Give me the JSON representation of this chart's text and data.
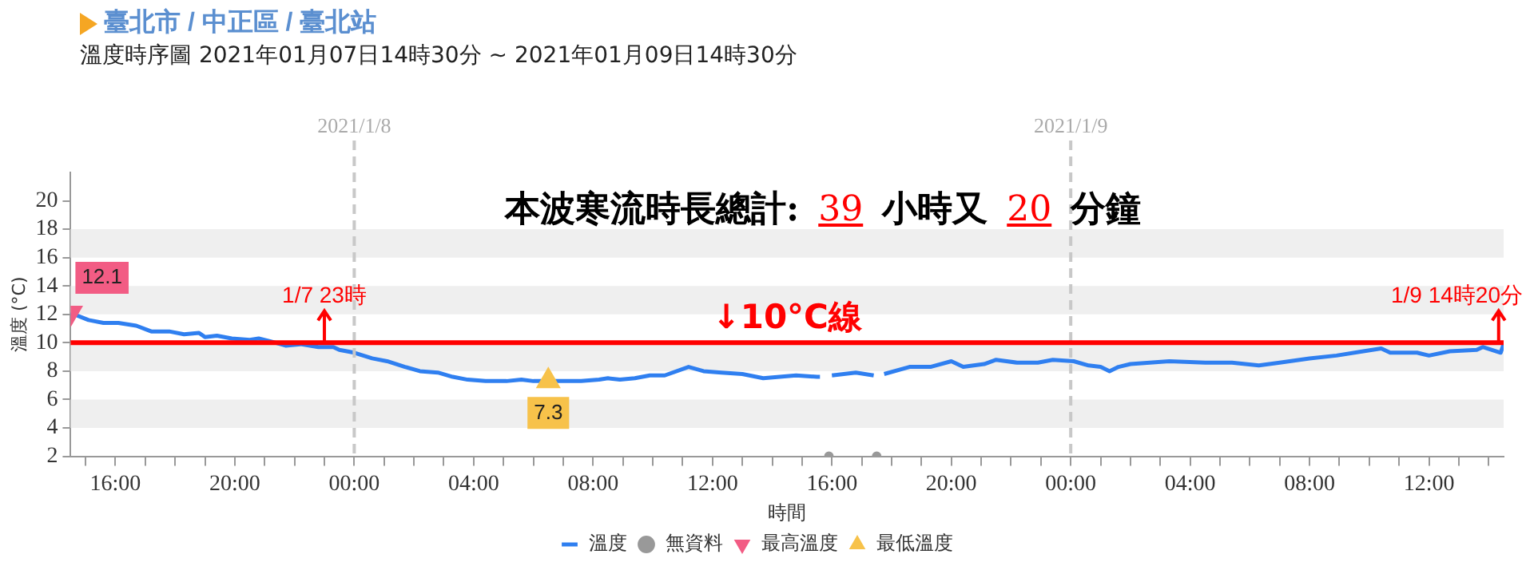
{
  "chart_data": {
    "type": "line",
    "title": "臺北市 / 中正區 / 臺北站",
    "subtitle": "溫度時序圖 2021年01月07日14時30分 ~ 2021年01月09日14時30分",
    "xlabel": "時間",
    "ylabel": "溫度 (°C)",
    "xlim": [
      "2021-01-07T14:30",
      "2021-01-09T14:30"
    ],
    "xticks": [
      {
        "value": "2021-01-07T15:00",
        "label": null
      },
      {
        "value": "2021-01-07T16:00",
        "label": "16:00"
      },
      {
        "value": "2021-01-07T17:00",
        "label": null
      },
      {
        "value": "2021-01-07T18:00",
        "label": null
      },
      {
        "value": "2021-01-07T19:00",
        "label": null
      },
      {
        "value": "2021-01-07T20:00",
        "label": "20:00"
      },
      {
        "value": "2021-01-07T21:00",
        "label": null
      },
      {
        "value": "2021-01-07T22:00",
        "label": null
      },
      {
        "value": "2021-01-07T23:00",
        "label": null
      },
      {
        "value": "2021-01-08T00:00",
        "label": "00:00"
      },
      {
        "value": "2021-01-08T01:00",
        "label": null
      },
      {
        "value": "2021-01-08T02:00",
        "label": null
      },
      {
        "value": "2021-01-08T03:00",
        "label": null
      },
      {
        "value": "2021-01-08T04:00",
        "label": "04:00"
      },
      {
        "value": "2021-01-08T05:00",
        "label": null
      },
      {
        "value": "2021-01-08T06:00",
        "label": null
      },
      {
        "value": "2021-01-08T07:00",
        "label": null
      },
      {
        "value": "2021-01-08T08:00",
        "label": "08:00"
      },
      {
        "value": "2021-01-08T09:00",
        "label": null
      },
      {
        "value": "2021-01-08T10:00",
        "label": null
      },
      {
        "value": "2021-01-08T11:00",
        "label": null
      },
      {
        "value": "2021-01-08T12:00",
        "label": "12:00"
      },
      {
        "value": "2021-01-08T13:00",
        "label": null
      },
      {
        "value": "2021-01-08T14:00",
        "label": null
      },
      {
        "value": "2021-01-08T15:00",
        "label": null
      },
      {
        "value": "2021-01-08T16:00",
        "label": "16:00"
      },
      {
        "value": "2021-01-08T17:00",
        "label": null
      },
      {
        "value": "2021-01-08T18:00",
        "label": null
      },
      {
        "value": "2021-01-08T19:00",
        "label": null
      },
      {
        "value": "2021-01-08T20:00",
        "label": "20:00"
      },
      {
        "value": "2021-01-08T21:00",
        "label": null
      },
      {
        "value": "2021-01-08T22:00",
        "label": null
      },
      {
        "value": "2021-01-08T23:00",
        "label": null
      },
      {
        "value": "2021-01-09T00:00",
        "label": "00:00"
      },
      {
        "value": "2021-01-09T01:00",
        "label": null
      },
      {
        "value": "2021-01-09T02:00",
        "label": null
      },
      {
        "value": "2021-01-09T03:00",
        "label": null
      },
      {
        "value": "2021-01-09T04:00",
        "label": "04:00"
      },
      {
        "value": "2021-01-09T05:00",
        "label": null
      },
      {
        "value": "2021-01-09T06:00",
        "label": null
      },
      {
        "value": "2021-01-09T07:00",
        "label": null
      },
      {
        "value": "2021-01-09T08:00",
        "label": "08:00"
      },
      {
        "value": "2021-01-09T09:00",
        "label": null
      },
      {
        "value": "2021-01-09T10:00",
        "label": null
      },
      {
        "value": "2021-01-09T11:00",
        "label": null
      },
      {
        "value": "2021-01-09T12:00",
        "label": "12:00"
      },
      {
        "value": "2021-01-09T13:00",
        "label": null
      },
      {
        "value": "2021-01-09T14:00",
        "label": null
      }
    ],
    "ylim": [
      2,
      22
    ],
    "yticks": [
      2,
      4,
      6,
      8,
      10,
      12,
      14,
      16,
      18,
      20
    ],
    "legend": "bottom",
    "series": [
      {
        "name": "溫度",
        "color": "#2f7ff0",
        "marker": "none",
        "x": [
          "2021-01-07T14:30",
          "2021-01-07T15:06",
          "2021-01-07T15:36",
          "2021-01-07T16:06",
          "2021-01-07T16:42",
          "2021-01-07T17:12",
          "2021-01-07T17:48",
          "2021-01-07T18:18",
          "2021-01-07T18:48",
          "2021-01-07T19:00",
          "2021-01-07T19:24",
          "2021-01-07T19:54",
          "2021-01-07T20:30",
          "2021-01-07T20:48",
          "2021-01-07T21:12",
          "2021-01-07T21:42",
          "2021-01-07T22:12",
          "2021-01-07T22:48",
          "2021-01-07T23:18",
          "2021-01-07T23:30",
          "2021-01-08T00:00",
          "2021-01-08T00:36",
          "2021-01-08T01:06",
          "2021-01-08T01:42",
          "2021-01-08T02:12",
          "2021-01-08T02:48",
          "2021-01-08T03:18",
          "2021-01-08T03:48",
          "2021-01-08T04:24",
          "2021-01-08T04:42",
          "2021-01-08T05:06",
          "2021-01-08T05:36",
          "2021-01-08T06:00",
          "2021-01-08T06:30",
          "2021-01-08T07:06",
          "2021-01-08T07:36",
          "2021-01-08T08:12",
          "2021-01-08T08:30",
          "2021-01-08T08:54",
          "2021-01-08T09:24",
          "2021-01-08T09:54",
          "2021-01-08T10:24",
          "2021-01-08T11:12",
          "2021-01-08T11:42",
          "2021-01-08T12:18",
          "2021-01-08T13:00",
          "2021-01-08T13:42",
          "2021-01-08T14:48",
          "2021-01-08T15:30",
          "2021-01-08T15:36",
          "2021-01-08T15:48",
          "2021-01-08T16:00",
          "2021-01-08T16:48",
          "2021-01-08T17:24",
          "2021-01-08T17:36",
          "2021-01-08T17:45",
          "2021-01-08T18:36",
          "2021-01-08T19:18",
          "2021-01-08T20:00",
          "2021-01-08T20:24",
          "2021-01-08T21:06",
          "2021-01-08T21:30",
          "2021-01-08T22:12",
          "2021-01-08T22:54",
          "2021-01-08T23:24",
          "2021-01-09T00:06",
          "2021-01-09T00:36",
          "2021-01-09T01:00",
          "2021-01-09T01:18",
          "2021-01-09T01:36",
          "2021-01-09T02:00",
          "2021-01-09T03:18",
          "2021-01-09T04:30",
          "2021-01-09T05:24",
          "2021-01-09T06:18",
          "2021-01-09T07:00",
          "2021-01-09T08:00",
          "2021-01-09T08:54",
          "2021-01-09T09:48",
          "2021-01-09T10:24",
          "2021-01-09T10:42",
          "2021-01-09T11:36",
          "2021-01-09T12:00",
          "2021-01-09T12:42",
          "2021-01-09T13:36",
          "2021-01-09T13:48",
          "2021-01-09T14:24",
          "2021-01-09T14:30"
        ],
        "values": [
          12.1,
          11.6,
          11.4,
          11.4,
          11.2,
          10.8,
          10.8,
          10.6,
          10.7,
          10.4,
          10.5,
          10.3,
          10.2,
          10.3,
          10.1,
          9.8,
          9.9,
          9.7,
          9.7,
          9.5,
          9.3,
          8.9,
          8.7,
          8.3,
          8.0,
          7.9,
          7.6,
          7.4,
          7.3,
          7.3,
          7.3,
          7.4,
          7.3,
          7.3,
          7.3,
          7.3,
          7.4,
          7.5,
          7.4,
          7.5,
          7.7,
          7.7,
          8.3,
          8.0,
          7.9,
          7.8,
          7.5,
          7.7,
          7.6,
          7.6,
          null,
          7.7,
          7.9,
          7.7,
          null,
          7.8,
          8.3,
          8.3,
          8.7,
          8.3,
          8.5,
          8.8,
          8.6,
          8.6,
          8.8,
          8.7,
          8.4,
          8.3,
          8.0,
          8.3,
          8.5,
          8.7,
          8.6,
          8.6,
          8.4,
          8.6,
          8.9,
          9.1,
          9.4,
          9.6,
          9.3,
          9.3,
          9.1,
          9.4,
          9.5,
          9.7,
          9.3,
          9.9
        ]
      },
      {
        "name": "無資料",
        "type": "scatter",
        "color": "#999999",
        "marker": "circle",
        "x": [
          "2021-01-08T15:54",
          "2021-01-08T17:30"
        ],
        "values": [
          2,
          2
        ]
      },
      {
        "name": "最高溫度",
        "type": "scatter",
        "color": "#f25c84",
        "marker": "triangle",
        "x": [
          "2021-01-07T14:30"
        ],
        "values": [
          12.1
        ],
        "value_labels": [
          "12.1"
        ]
      },
      {
        "name": "最低溫度",
        "type": "scatter",
        "color": "#f7c24a",
        "marker": "triangle",
        "x": [
          "2021-01-08T06:30"
        ],
        "values": [
          7.3
        ],
        "value_labels": [
          "7.3"
        ]
      }
    ],
    "bands": [
      {
        "axis": "y",
        "from": 4,
        "to": 6,
        "color": "#efefef"
      },
      {
        "axis": "y",
        "from": 8,
        "to": 10,
        "color": "#efefef"
      },
      {
        "axis": "y",
        "from": 12,
        "to": 14,
        "color": "#efefef"
      },
      {
        "axis": "y",
        "from": 16,
        "to": 18,
        "color": "#efefef"
      }
    ],
    "ref_lines": [
      {
        "axis": "x",
        "value": "2021-01-08",
        "label": "2021/1/8",
        "color": "#c8c8c8",
        "line_style": "dashed"
      },
      {
        "axis": "x",
        "value": "2021-01-09",
        "label": "2021/1/9",
        "color": "#c8c8c8",
        "line_style": "dashed"
      },
      {
        "axis": "y",
        "value": 10,
        "label": "↓10°C線",
        "color": "#ff0000",
        "line_style": "solid"
      }
    ],
    "annotations": [
      "本波寒流時長總計: 39 小時又 20 分鐘",
      {
        "text": "1/7 23時",
        "x": "2021-01-07T23:00",
        "y": 10
      },
      {
        "text": "1/9 14時20分",
        "x": "2021-01-09T14:20",
        "y": 10
      }
    ]
  }
}
